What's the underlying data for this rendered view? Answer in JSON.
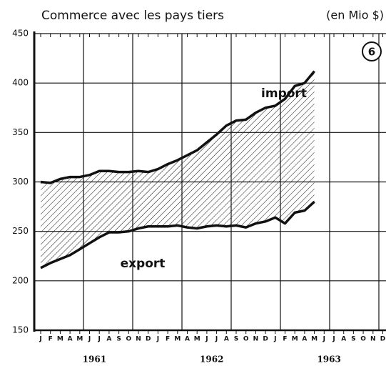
{
  "chart_data": {
    "type": "line",
    "title": "Commerce avec les pays tiers",
    "unit_label": "(en Mio $)",
    "chart_number": "6",
    "categories": [
      "J",
      "F",
      "M",
      "A",
      "M",
      "J",
      "J",
      "A",
      "S",
      "O",
      "N",
      "D",
      "J",
      "F",
      "M",
      "A",
      "M",
      "J",
      "J",
      "A",
      "S",
      "O",
      "N",
      "D",
      "J",
      "F",
      "M",
      "A",
      "M",
      "J",
      "J",
      "A",
      "S",
      "O",
      "N",
      "D"
    ],
    "years": [
      "1961",
      "1962",
      "1963"
    ],
    "series": [
      {
        "name": "import",
        "color": "#111111",
        "values": [
          300,
          299,
          303,
          305,
          305,
          307,
          311,
          311,
          310,
          310,
          311,
          310,
          313,
          318,
          322,
          327,
          332,
          340,
          348,
          357,
          362,
          363,
          370,
          375,
          377,
          384,
          397,
          400,
          412,
          null,
          null,
          null,
          null,
          null,
          null,
          null
        ]
      },
      {
        "name": "export",
        "color": "#111111",
        "values": [
          213,
          218,
          222,
          226,
          232,
          238,
          244,
          249,
          249,
          250,
          253,
          255,
          255,
          255,
          256,
          254,
          253,
          255,
          256,
          255,
          256,
          254,
          258,
          260,
          264,
          258,
          269,
          271,
          280,
          null,
          null,
          null,
          null,
          null,
          null,
          null
        ]
      }
    ],
    "ylim": [
      150,
      450
    ],
    "yticks": [
      150,
      200,
      250,
      300,
      350,
      400,
      450
    ],
    "grid": true,
    "hatch_between": true
  }
}
